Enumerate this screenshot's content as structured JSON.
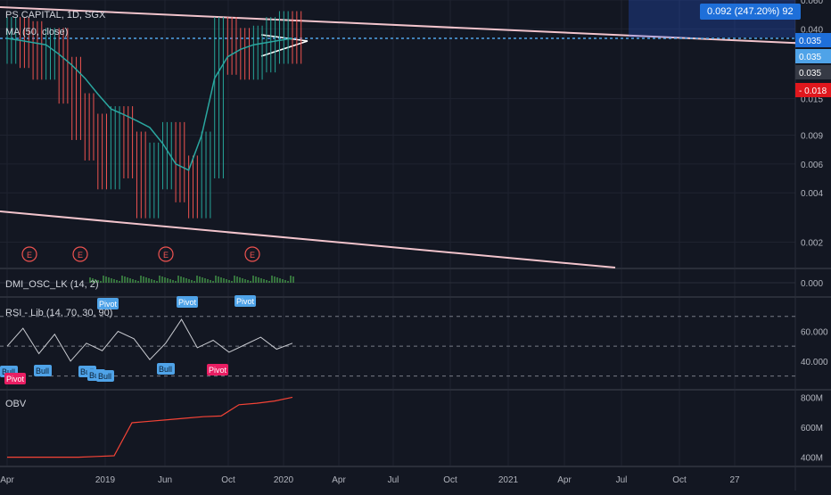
{
  "header": {
    "symbol": "PS CAPITAL, 1D, SGX",
    "ma_label": "MA (50, close)"
  },
  "measure_label": "0.092 (247.20%) 92",
  "price_tags": [
    {
      "text": "0.035",
      "bg": "#1e6fd9",
      "fg": "#ffffff"
    },
    {
      "text": "0.035",
      "bg": "#2962ff",
      "fg": "#ffffff",
      "alt_bg": "#4fa3e8"
    },
    {
      "text": "0.035",
      "bg": "#363a45",
      "fg": "#ffffff"
    },
    {
      "text": "- 0.018",
      "bg": "#e0171d",
      "fg": "#ffffff"
    }
  ],
  "panes": {
    "dmi": {
      "label": "DMI_OSC_LK (14, 2)",
      "axis_value": "0.000"
    },
    "rsi": {
      "label": "RSI - Lib (14, 70, 30, 90)",
      "axis_ticks": [
        "60.000",
        "40.000"
      ]
    },
    "obv": {
      "label": "OBV",
      "axis_ticks": [
        "800M",
        "600M",
        "400M"
      ]
    }
  },
  "event_markers": [
    "E",
    "E",
    "E",
    "E"
  ],
  "pivot_labels": [
    "Pivot",
    "Pivot",
    "Pivot",
    "Pivot",
    "Pivot"
  ],
  "bull_labels": [
    "Bull",
    "Bull",
    "Bull",
    "Bull",
    "Bull",
    "Bull"
  ],
  "colors": {
    "background": "#131722",
    "grid": "#1f2330",
    "candle": "#26a69a",
    "candle_down": "#ef5350",
    "ma": "#2aa7a0",
    "trendline": "#f2c4cc",
    "price_line": "#4fa3e8",
    "rsi_line": "#c9cbd1",
    "obv_line": "#f44336",
    "bull_tag": "#4fa3e8",
    "pivot_tag": "#e91e63"
  },
  "chart_data": {
    "type": "candlestick",
    "scale": "log",
    "x_ticks": [
      "Apr",
      "2019",
      "Jun",
      "Oct",
      "2020",
      "Apr",
      "Jul",
      "Oct",
      "2021",
      "Apr",
      "Jul",
      "Oct",
      "27"
    ],
    "y_ticks": [
      "0.060",
      "0.040",
      "0.015",
      "0.009",
      "0.006",
      "0.004",
      "0.002"
    ],
    "ylim": [
      0.0014,
      0.06
    ],
    "last_price": 0.035,
    "ma": [
      0.035,
      0.034,
      0.033,
      0.032,
      0.028,
      0.024,
      0.02,
      0.016,
      0.013,
      0.012,
      0.011,
      0.01,
      0.008,
      0.006,
      0.0055,
      0.009,
      0.02,
      0.027,
      0.03,
      0.032,
      0.033,
      0.034,
      0.035
    ],
    "price": [
      0.035,
      0.033,
      0.028,
      0.03,
      0.02,
      0.012,
      0.009,
      0.006,
      0.01,
      0.007,
      0.004,
      0.006,
      0.008,
      0.005,
      0.004,
      0.007,
      0.035,
      0.03,
      0.028,
      0.031,
      0.035,
      0.038,
      0.035
    ],
    "rsi": [
      50,
      62,
      45,
      58,
      40,
      52,
      47,
      60,
      55,
      41,
      52,
      68,
      49,
      54,
      46,
      51,
      56,
      48,
      52
    ],
    "rsi_levels": [
      70,
      50,
      30
    ],
    "obv": [
      400,
      400,
      400,
      400,
      400,
      405,
      410,
      630,
      640,
      650,
      660,
      670,
      675,
      750,
      760,
      775,
      800
    ],
    "obv_unit": "M"
  }
}
